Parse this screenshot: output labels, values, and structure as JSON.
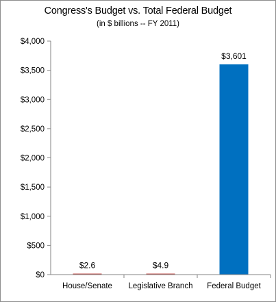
{
  "chart_data": {
    "type": "bar",
    "title": "Congress's Budget vs. Total Federal Budget",
    "subtitle": "(in $ billions -- FY 2011)",
    "categories": [
      "House/Senate",
      "Legislative Branch",
      "Federal Budget"
    ],
    "values": [
      2.6,
      4.9,
      3601
    ],
    "data_labels": [
      "$2.6",
      "$4.9",
      "$3,601"
    ],
    "bar_colors": [
      "#c0504d",
      "#c0504d",
      "#0070c0"
    ],
    "ylim": [
      0,
      4000
    ],
    "yticks": [
      0,
      500,
      1000,
      1500,
      2000,
      2500,
      3000,
      3500,
      4000
    ],
    "ytick_labels": [
      "$0",
      "$500",
      "$1,000",
      "$1,500",
      "$2,000",
      "$2,500",
      "$3,000",
      "$3,500",
      "$4,000"
    ],
    "xlabel": "",
    "ylabel": "",
    "grid": false,
    "legend": "none"
  }
}
